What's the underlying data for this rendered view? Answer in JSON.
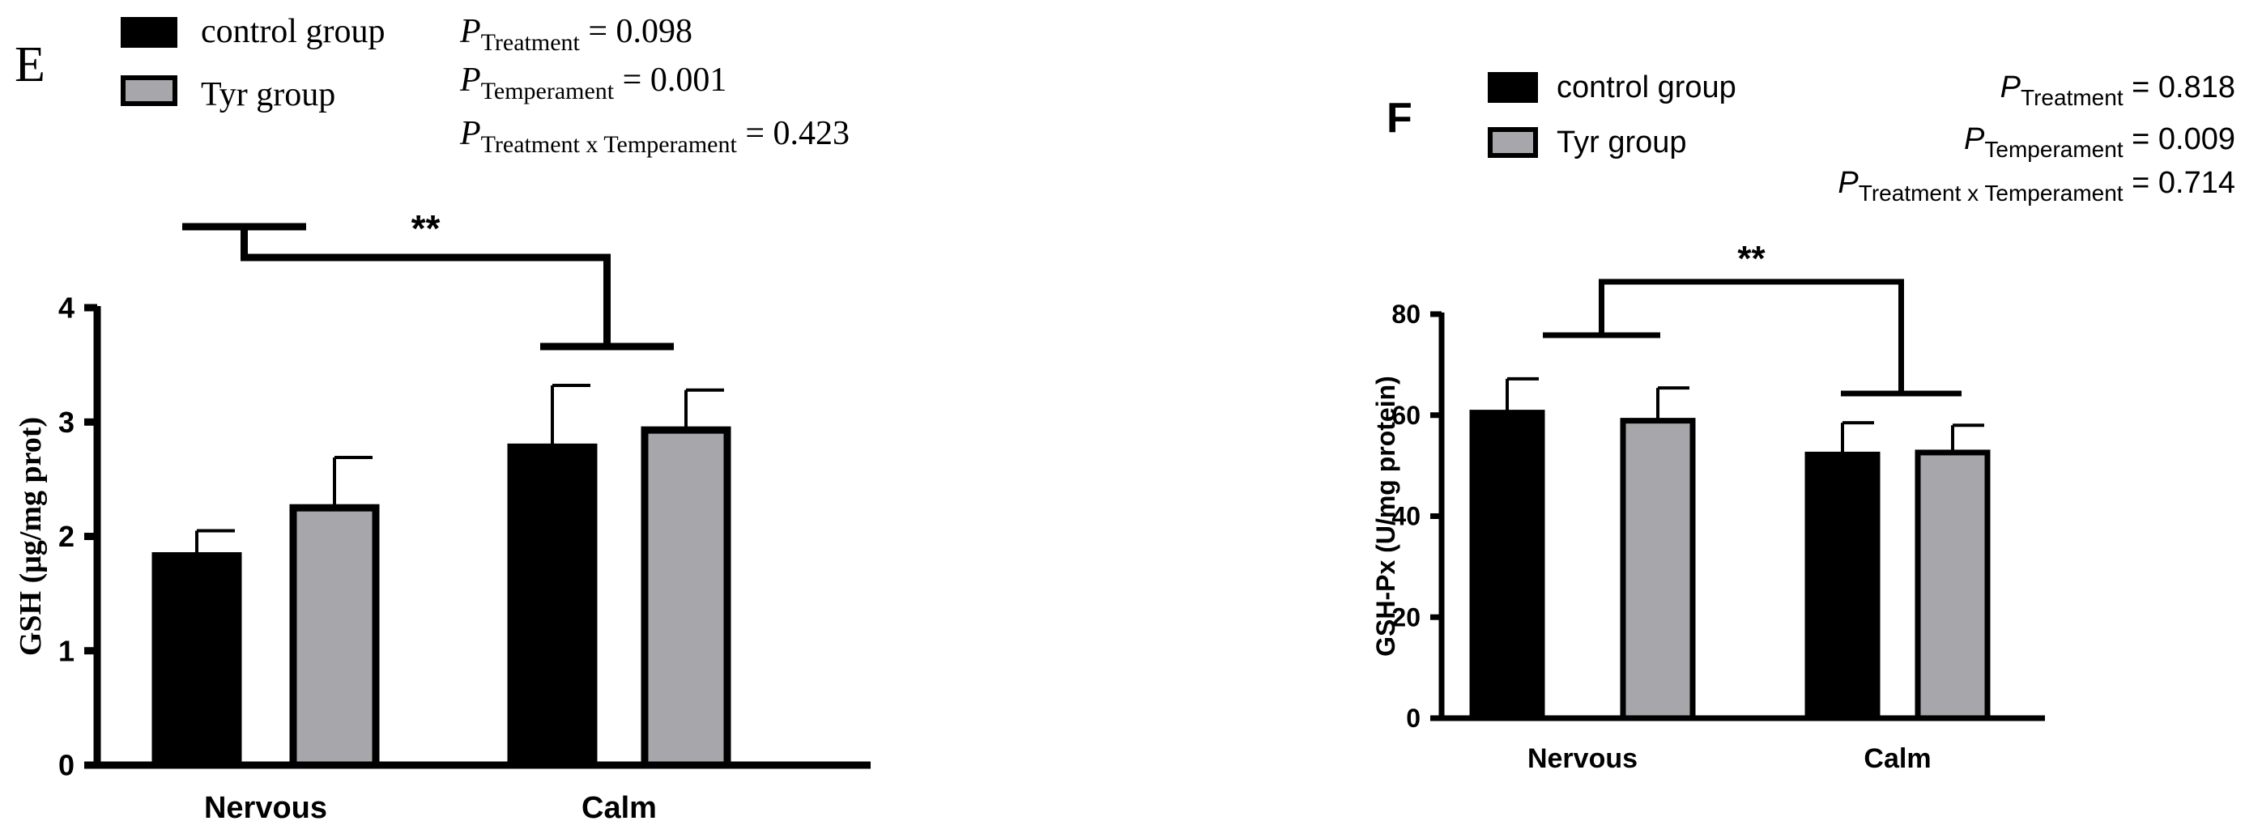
{
  "chart_data": [
    {
      "panel_label": "E",
      "type": "bar",
      "categories": [
        "Nervous",
        "Calm"
      ],
      "series": [
        {
          "name": "control group",
          "values": [
            1.83,
            2.78
          ],
          "errors": [
            0.22,
            0.54
          ]
        },
        {
          "name": "Tyr group",
          "values": [
            2.25,
            2.93
          ],
          "errors": [
            0.44,
            0.35
          ]
        }
      ],
      "ylabel": "GSH (μg/mg prot)",
      "ylim": [
        0,
        4
      ],
      "yticks": [
        "0",
        "1",
        "2",
        "3",
        "4"
      ],
      "significance": "**",
      "stats": [
        {
          "p": "P",
          "sub": "Treatment",
          "value": " = 0.098"
        },
        {
          "p": "P",
          "sub": "Temperament",
          "value": " = 0.001"
        },
        {
          "p": "P",
          "sub": "Treatment x Temperament",
          "value": " = 0.423"
        }
      ],
      "legend_position": "top-left",
      "grid": false
    },
    {
      "panel_label": "F",
      "type": "bar",
      "categories": [
        "Nervous",
        "Calm"
      ],
      "series": [
        {
          "name": "control group",
          "values": [
            60.5,
            52.2
          ],
          "errors": [
            6.7,
            6.3
          ]
        },
        {
          "name": "Tyr group",
          "values": [
            58.9,
            52.6
          ],
          "errors": [
            6.5,
            5.4
          ]
        }
      ],
      "ylabel": "GSH-Px (U/mg protein)",
      "ylim": [
        0,
        80
      ],
      "yticks": [
        "0",
        "20",
        "40",
        "60",
        "80"
      ],
      "significance": "**",
      "stats": [
        {
          "p": "P",
          "sub": "Treatment",
          "value": " = 0.818"
        },
        {
          "p": "P",
          "sub": "Temperament",
          "value": " = 0.009"
        },
        {
          "p": "P",
          "sub": "Treatment x Temperament",
          "value": " = 0.714"
        }
      ],
      "legend_position": "top-left",
      "grid": false
    }
  ],
  "colors": {
    "control": "#000000",
    "tyr": "#a7a7ab",
    "axis": "#000000"
  }
}
